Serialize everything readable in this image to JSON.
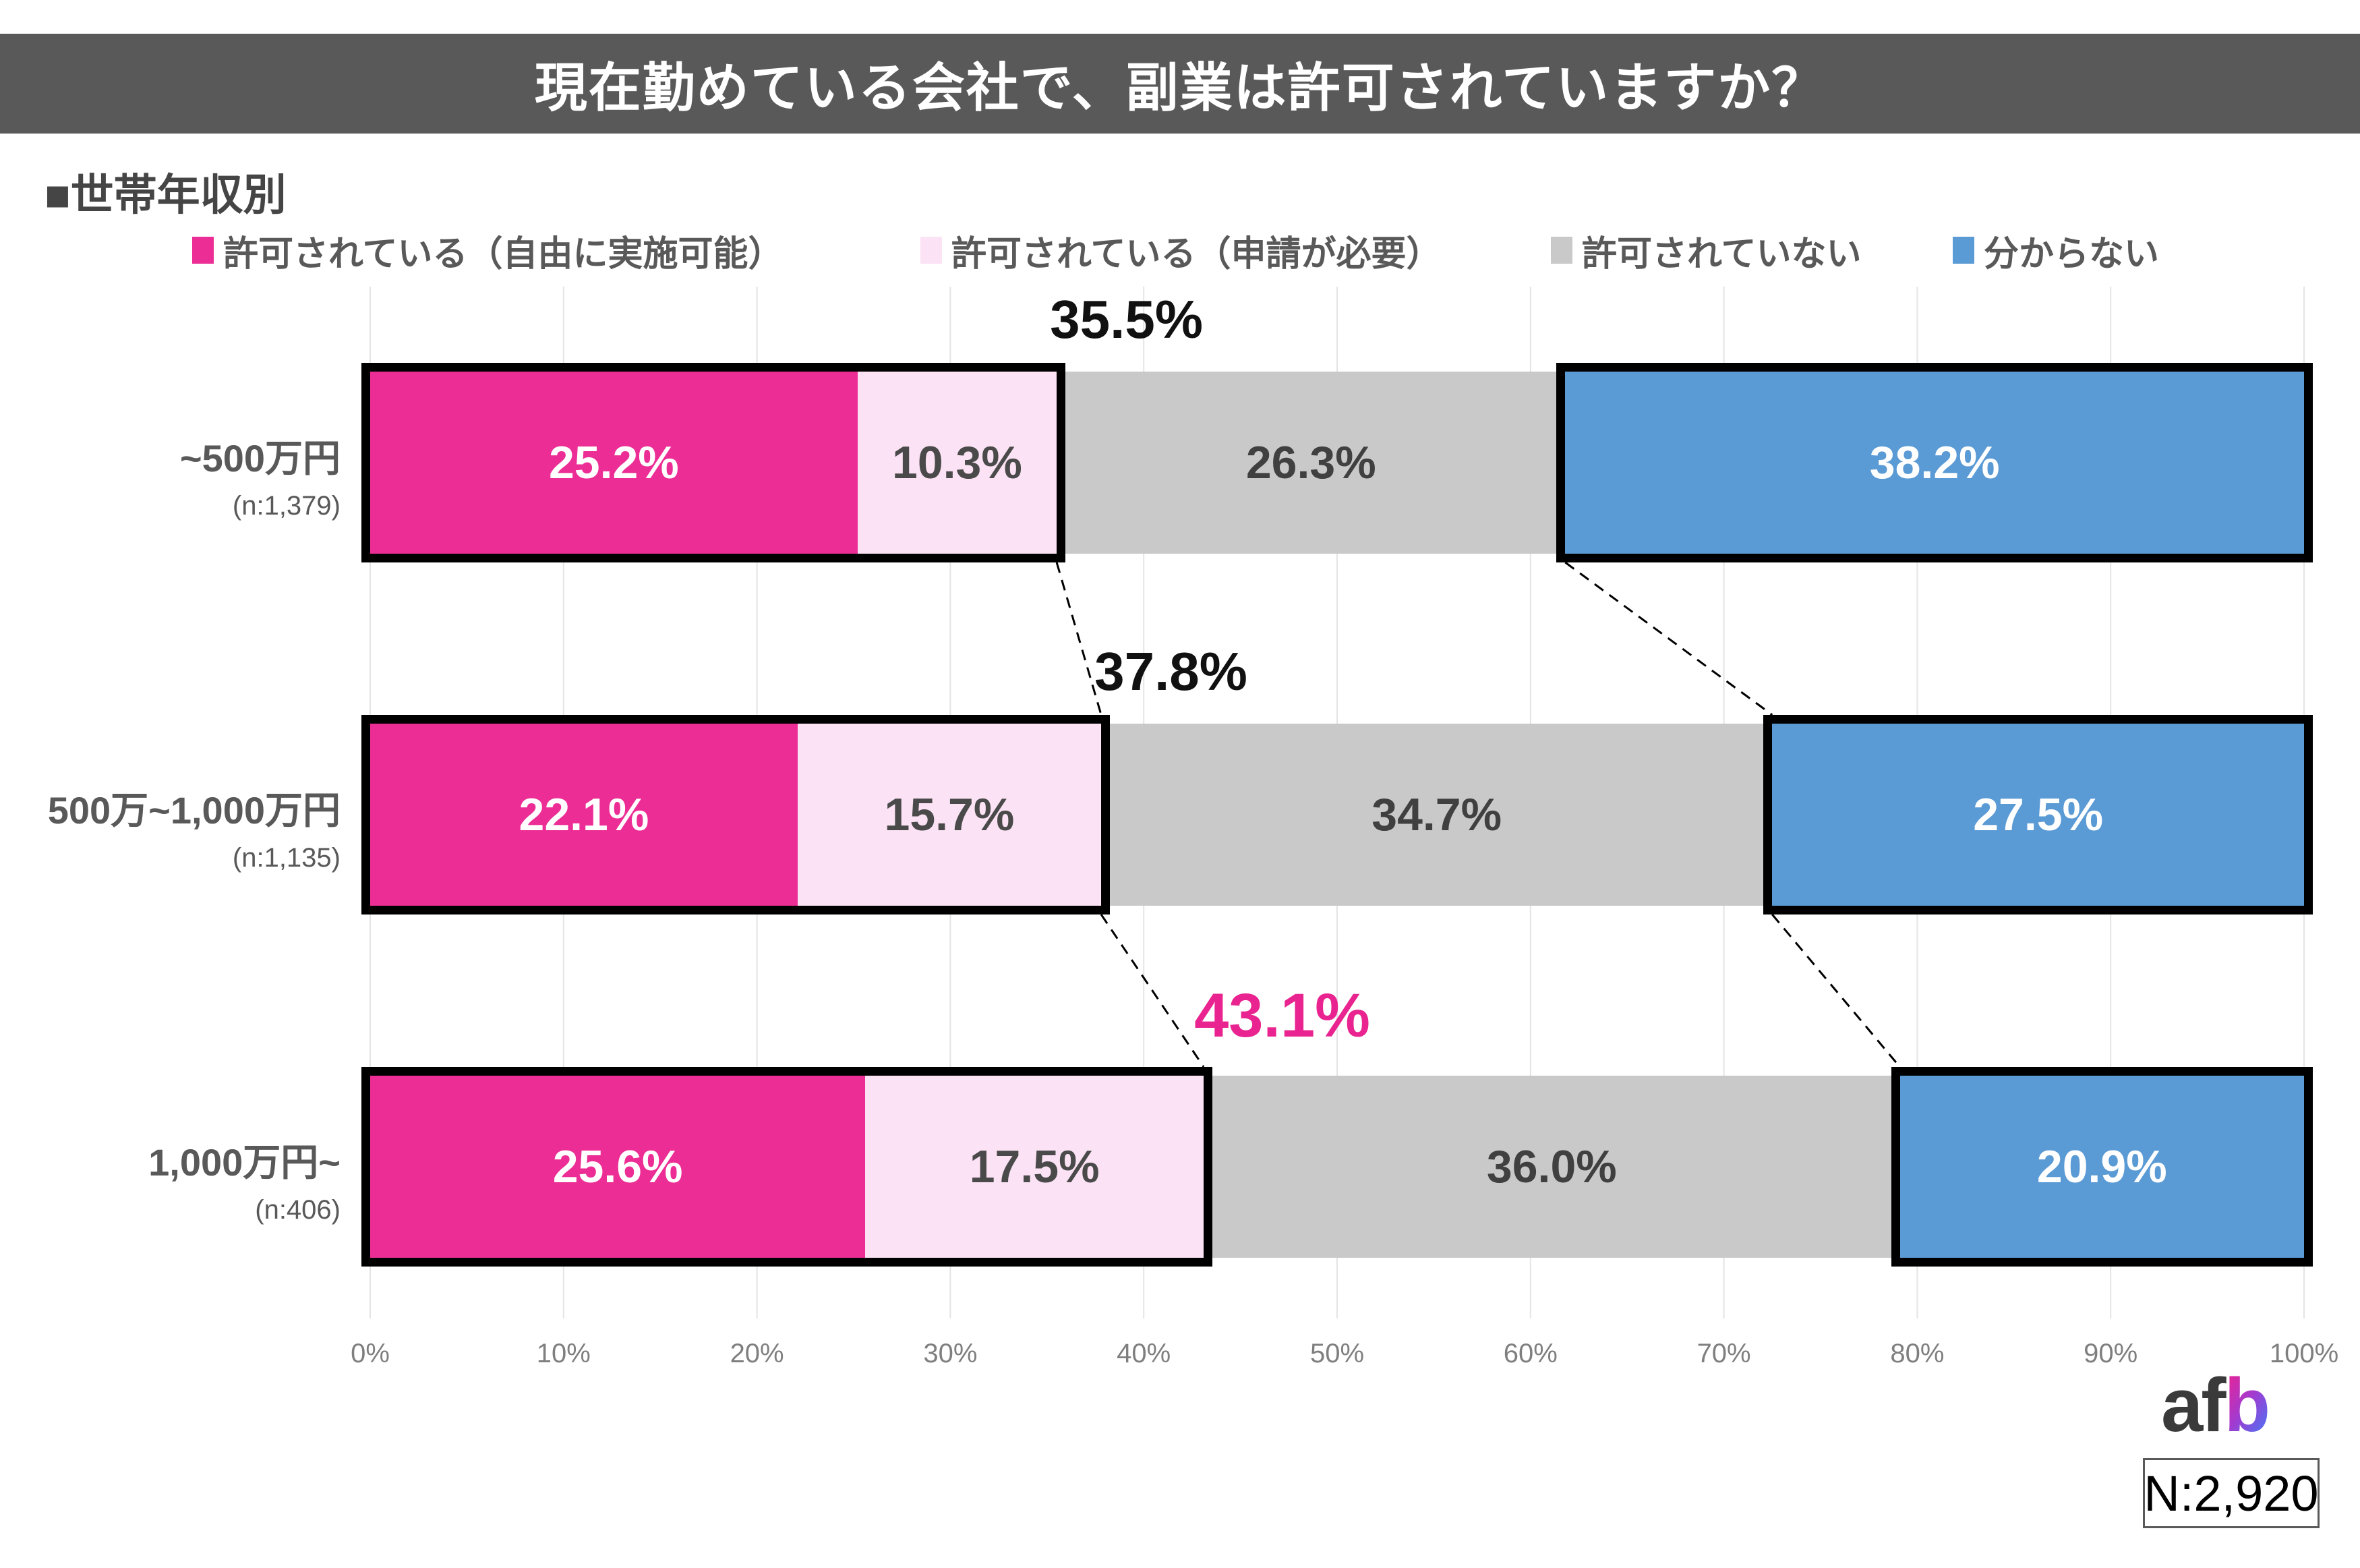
{
  "title": "現在勤めている会社で、副業は許可されていますか？",
  "section_label": "■世帯年収別",
  "chart_data": {
    "type": "bar",
    "orientation": "horizontal_stacked",
    "title": "現在勤めている会社で、副業は許可されていますか？",
    "group_label": "世帯年収別",
    "categories": [
      "~500万円",
      "500万~1,000万円",
      "1,000万円~"
    ],
    "category_sample_sizes": [
      "(n:1,379)",
      "(n:1,135)",
      "(n:406)"
    ],
    "series": [
      {
        "name": "許可されている（自由に実施可能）",
        "color": "#EC2D95",
        "value_label_color": "#FFFFFF",
        "values": [
          25.2,
          22.1,
          25.6
        ]
      },
      {
        "name": "許可されている（申請が必要）",
        "color": "#FBE2F4",
        "value_label_color": "#4A4A4A",
        "values": [
          10.3,
          15.7,
          17.5
        ]
      },
      {
        "name": "許可されていない",
        "color": "#C9C9C9",
        "value_label_color": "#404040",
        "values": [
          26.3,
          34.7,
          36.0
        ]
      },
      {
        "name": "分からない",
        "color": "#5B9BD5",
        "value_label_color": "#FFFFFF",
        "values": [
          38.2,
          27.5,
          20.9
        ]
      }
    ],
    "combined_permitted_annotations": {
      "values": [
        35.5,
        37.8,
        43.1
      ],
      "colors": [
        "#111111",
        "#111111",
        "#E9238F"
      ]
    },
    "xlim": [
      0,
      100
    ],
    "x_tick_labels": [
      "0%",
      "10%",
      "20%",
      "30%",
      "40%",
      "50%",
      "60%",
      "70%",
      "80%",
      "90%",
      "100%"
    ],
    "grid": true,
    "legend_position": "top"
  },
  "footer": {
    "logo_dark": "af",
    "logo_gradient": "b",
    "n_total": "N:2,920"
  }
}
